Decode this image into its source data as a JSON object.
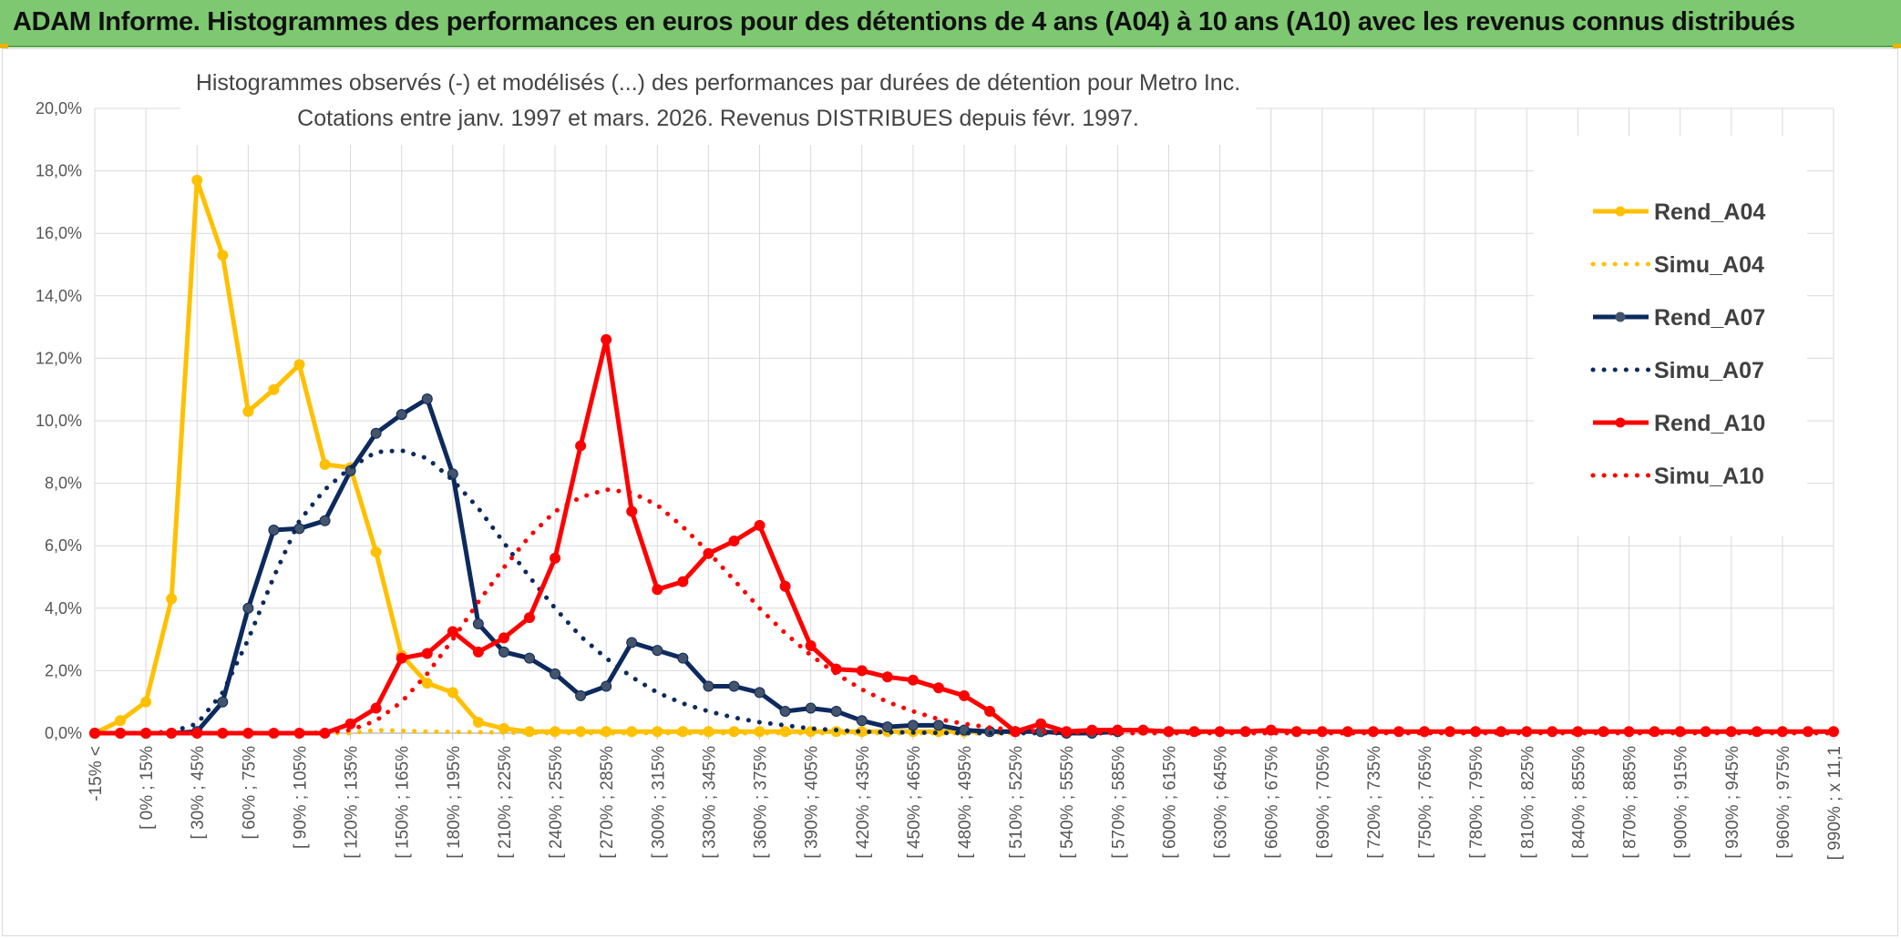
{
  "banner": {
    "title": "ADAM Informe. Histogrammes des performances en euros pour des détentions de 4 ans (A04) à 10 ans (A10) avec les revenus connus distribués"
  },
  "colors": {
    "banner_bg": "#7dc870",
    "a04": "#ffc000",
    "a07": "#0d2a5e",
    "a10": "#ff0000",
    "grid": "#d9d9d9"
  },
  "chart_data": {
    "type": "line",
    "title_line1": "Histogrammes observés (-) et modélisés (...) des performances par durées de détention pour Metro Inc.",
    "title_line2": "Cotations entre janv. 1997 et mars. 2026. Revenus DISTRIBUES depuis févr. 1997.",
    "ylim": [
      0,
      20
    ],
    "y_ticks": [
      "0,0%",
      "2,0%",
      "4,0%",
      "6,0%",
      "8,0%",
      "10,0%",
      "12,0%",
      "14,0%",
      "16,0%",
      "18,0%",
      "20,0%"
    ],
    "x_labels": [
      "-15% <",
      "[ 0% ; 15%",
      "[ 30% ; 45%",
      "[ 60% ; 75%",
      "[ 90% ; 105%",
      "[ 120% ; 135%",
      "[ 150% ; 165%",
      "[ 180% ; 195%",
      "[ 210% ; 225%",
      "[ 240% ; 255%",
      "[ 270% ; 285%",
      "[ 300% ; 315%",
      "[ 330% ; 345%",
      "[ 360% ; 375%",
      "[ 390% ; 405%",
      "[ 420% ; 435%",
      "[ 450% ; 465%",
      "[ 480% ; 495%",
      "[ 510% ; 525%",
      "[ 540% ; 555%",
      "[ 570% ; 585%",
      "[ 600% ; 615%",
      "[ 630% ; 645%",
      "[ 660% ; 675%",
      "[ 690% ; 705%",
      "[ 720% ; 735%",
      "[ 750% ; 765%",
      "[ 780% ; 795%",
      "[ 810% ; 825%",
      "[ 840% ; 855%",
      "[ 870% ; 885%",
      "[ 900% ; 915%",
      "[ 930% ; 945%",
      "[ 960% ; 975%",
      "[ 990% ; x 11,1"
    ],
    "n_bins": 69,
    "series": [
      {
        "name": "Rend_A04",
        "style": "solid",
        "color": "#ffc000",
        "values": [
          0,
          0.4,
          1.0,
          4.3,
          17.7,
          15.3,
          10.3,
          11.0,
          11.8,
          8.6,
          8.5,
          5.8,
          2.5,
          1.6,
          1.3,
          0.35,
          0.15,
          0.05,
          0.05,
          0.05,
          0.05,
          0.05,
          0.05,
          0.05,
          0.05,
          0.05,
          0.05,
          0.05,
          0.05,
          0.05,
          0.05,
          0.05,
          0.05,
          0.05,
          0.05,
          0.05,
          0.05
        ]
      },
      {
        "name": "Simu_A04",
        "style": "dotted",
        "color": "#ffc000",
        "values": [
          0,
          0.0,
          0.0,
          0.0,
          0.0,
          0.0,
          0.0,
          0.0,
          0.0,
          0.0,
          0.0,
          0.1,
          0.08,
          0.05,
          0.04,
          0.03,
          0.02,
          0.01,
          0.0,
          0.0,
          0.0,
          0.0,
          0.0,
          0.0,
          0.0,
          0.0,
          0.0,
          0.0,
          0.0,
          0.0,
          0.0,
          0.0,
          0.0,
          0.0,
          0.0,
          0.0,
          0.0
        ]
      },
      {
        "name": "Rend_A07",
        "style": "solid",
        "color": "#0d2a5e",
        "values": [
          0,
          0,
          0,
          0,
          0.05,
          1.0,
          4.0,
          6.5,
          6.55,
          6.8,
          8.4,
          9.6,
          10.2,
          10.7,
          8.3,
          3.5,
          2.6,
          2.4,
          1.9,
          1.2,
          1.5,
          2.9,
          2.65,
          2.4,
          1.5,
          1.5,
          1.3,
          0.7,
          0.8,
          0.7,
          0.4,
          0.2,
          0.25,
          0.25,
          0.1,
          0.05,
          0.05,
          0.05,
          0.0,
          0.0,
          0.05
        ]
      },
      {
        "name": "Simu_A07",
        "style": "dotted",
        "color": "#0d2a5e",
        "values": [
          0,
          0,
          0,
          0.05,
          0.3,
          1.3,
          3.0,
          5.0,
          6.8,
          7.8,
          8.5,
          9.0,
          9.05,
          8.8,
          8.1,
          7.2,
          6.1,
          5.0,
          4.0,
          3.1,
          2.4,
          1.8,
          1.3,
          0.95,
          0.7,
          0.5,
          0.35,
          0.25,
          0.15,
          0.1,
          0.05,
          0.03,
          0.02,
          0.01,
          0,
          0,
          0,
          0,
          0,
          0,
          0
        ]
      },
      {
        "name": "Rend_A10",
        "style": "solid",
        "color": "#ff0000",
        "values": [
          0,
          0,
          0,
          0,
          0,
          0,
          0,
          0,
          0,
          0.0,
          0.3,
          0.8,
          2.4,
          2.55,
          3.25,
          2.6,
          3.05,
          3.7,
          5.6,
          9.2,
          12.6,
          7.1,
          4.6,
          4.85,
          5.75,
          6.15,
          6.65,
          4.7,
          2.8,
          2.05,
          2.0,
          1.8,
          1.7,
          1.45,
          1.2,
          0.7,
          0.05,
          0.3,
          0.05,
          0.1,
          0.1,
          0.1,
          0.05,
          0.05,
          0.05,
          0.05,
          0.1,
          0.05,
          0.05,
          0.05,
          0.05,
          0.05,
          0.05,
          0.05,
          0.05,
          0.05,
          0.05,
          0.05,
          0.05,
          0.05,
          0.05,
          0.05,
          0.05,
          0.05,
          0.05,
          0.05,
          0.05,
          0.05,
          0.05
        ]
      },
      {
        "name": "Simu_A10",
        "style": "dotted",
        "color": "#ff0000",
        "values": [
          0,
          0,
          0,
          0,
          0,
          0,
          0,
          0,
          0,
          0.02,
          0.1,
          0.4,
          1.0,
          1.9,
          3.0,
          4.2,
          5.3,
          6.3,
          7.1,
          7.55,
          7.8,
          7.7,
          7.3,
          6.6,
          5.8,
          4.9,
          4.0,
          3.2,
          2.5,
          1.9,
          1.4,
          1.0,
          0.7,
          0.45,
          0.3,
          0.18,
          0.1,
          0.05,
          0.03,
          0.01,
          0,
          0,
          0,
          0,
          0,
          0,
          0,
          0,
          0,
          0,
          0,
          0,
          0,
          0,
          0,
          0,
          0,
          0,
          0,
          0,
          0,
          0,
          0,
          0,
          0,
          0,
          0,
          0,
          0
        ]
      }
    ],
    "legend": [
      "Rend_A04",
      "Simu_A04",
      "Rend_A07",
      "Simu_A07",
      "Rend_A10",
      "Simu_A10"
    ],
    "legend_position": "right"
  }
}
